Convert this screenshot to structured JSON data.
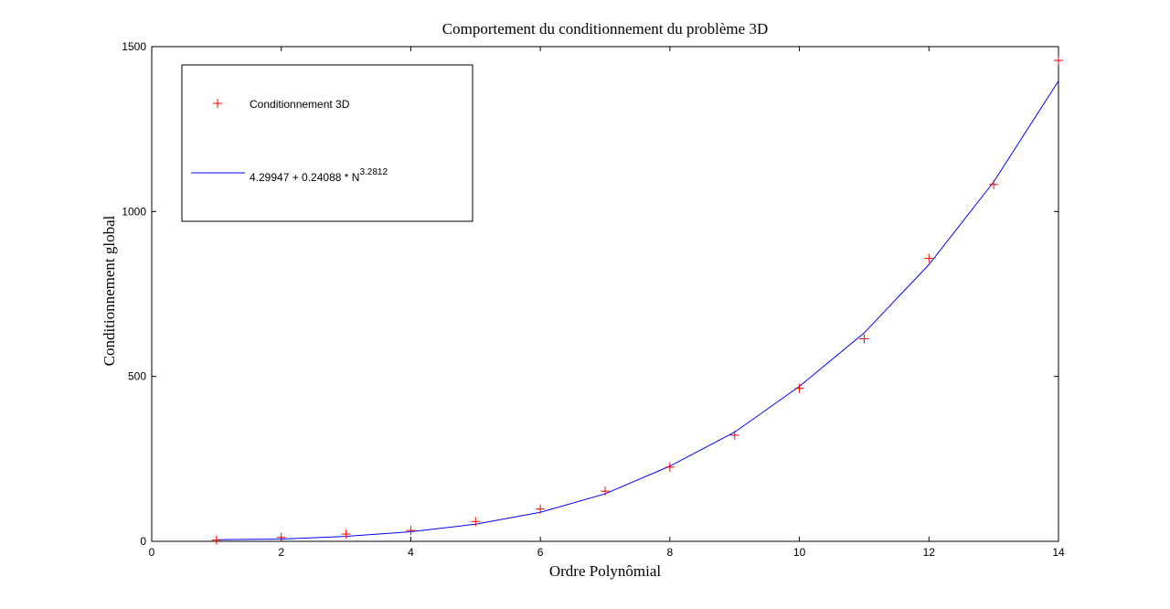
{
  "chart_data": {
    "type": "line",
    "title": "Comportement du conditionnement du problème 3D",
    "xlabel": "Ordre Polynômial",
    "ylabel": "Conditionnement global",
    "xlim": [
      0,
      14
    ],
    "ylim": [
      0,
      1500
    ],
    "xticks": [
      0,
      2,
      4,
      6,
      8,
      10,
      12,
      14
    ],
    "yticks": [
      0,
      500,
      1000,
      1500
    ],
    "grid": false,
    "legend_position": "top-left",
    "series": [
      {
        "name": "Conditionnement 3D",
        "marker": "+",
        "color": "#ff0000",
        "x": [
          1,
          2,
          3,
          4,
          5,
          6,
          7,
          8,
          9,
          10,
          11,
          12,
          13,
          14
        ],
        "y": [
          4,
          12,
          22,
          33,
          60,
          98,
          152,
          225,
          322,
          464,
          614,
          858,
          1082,
          1458
        ]
      },
      {
        "name_base": "4.29947 + 0.24088 * N",
        "name_exp": "3.2812",
        "line": "solid",
        "color": "#0000ff",
        "x": [
          1,
          2,
          3,
          4,
          5,
          6,
          7,
          8,
          9,
          10,
          11,
          12,
          13,
          14
        ],
        "y": [
          5,
          7,
          15,
          29,
          52,
          88,
          144,
          228,
          331,
          470,
          632,
          839,
          1090,
          1396
        ]
      }
    ]
  }
}
